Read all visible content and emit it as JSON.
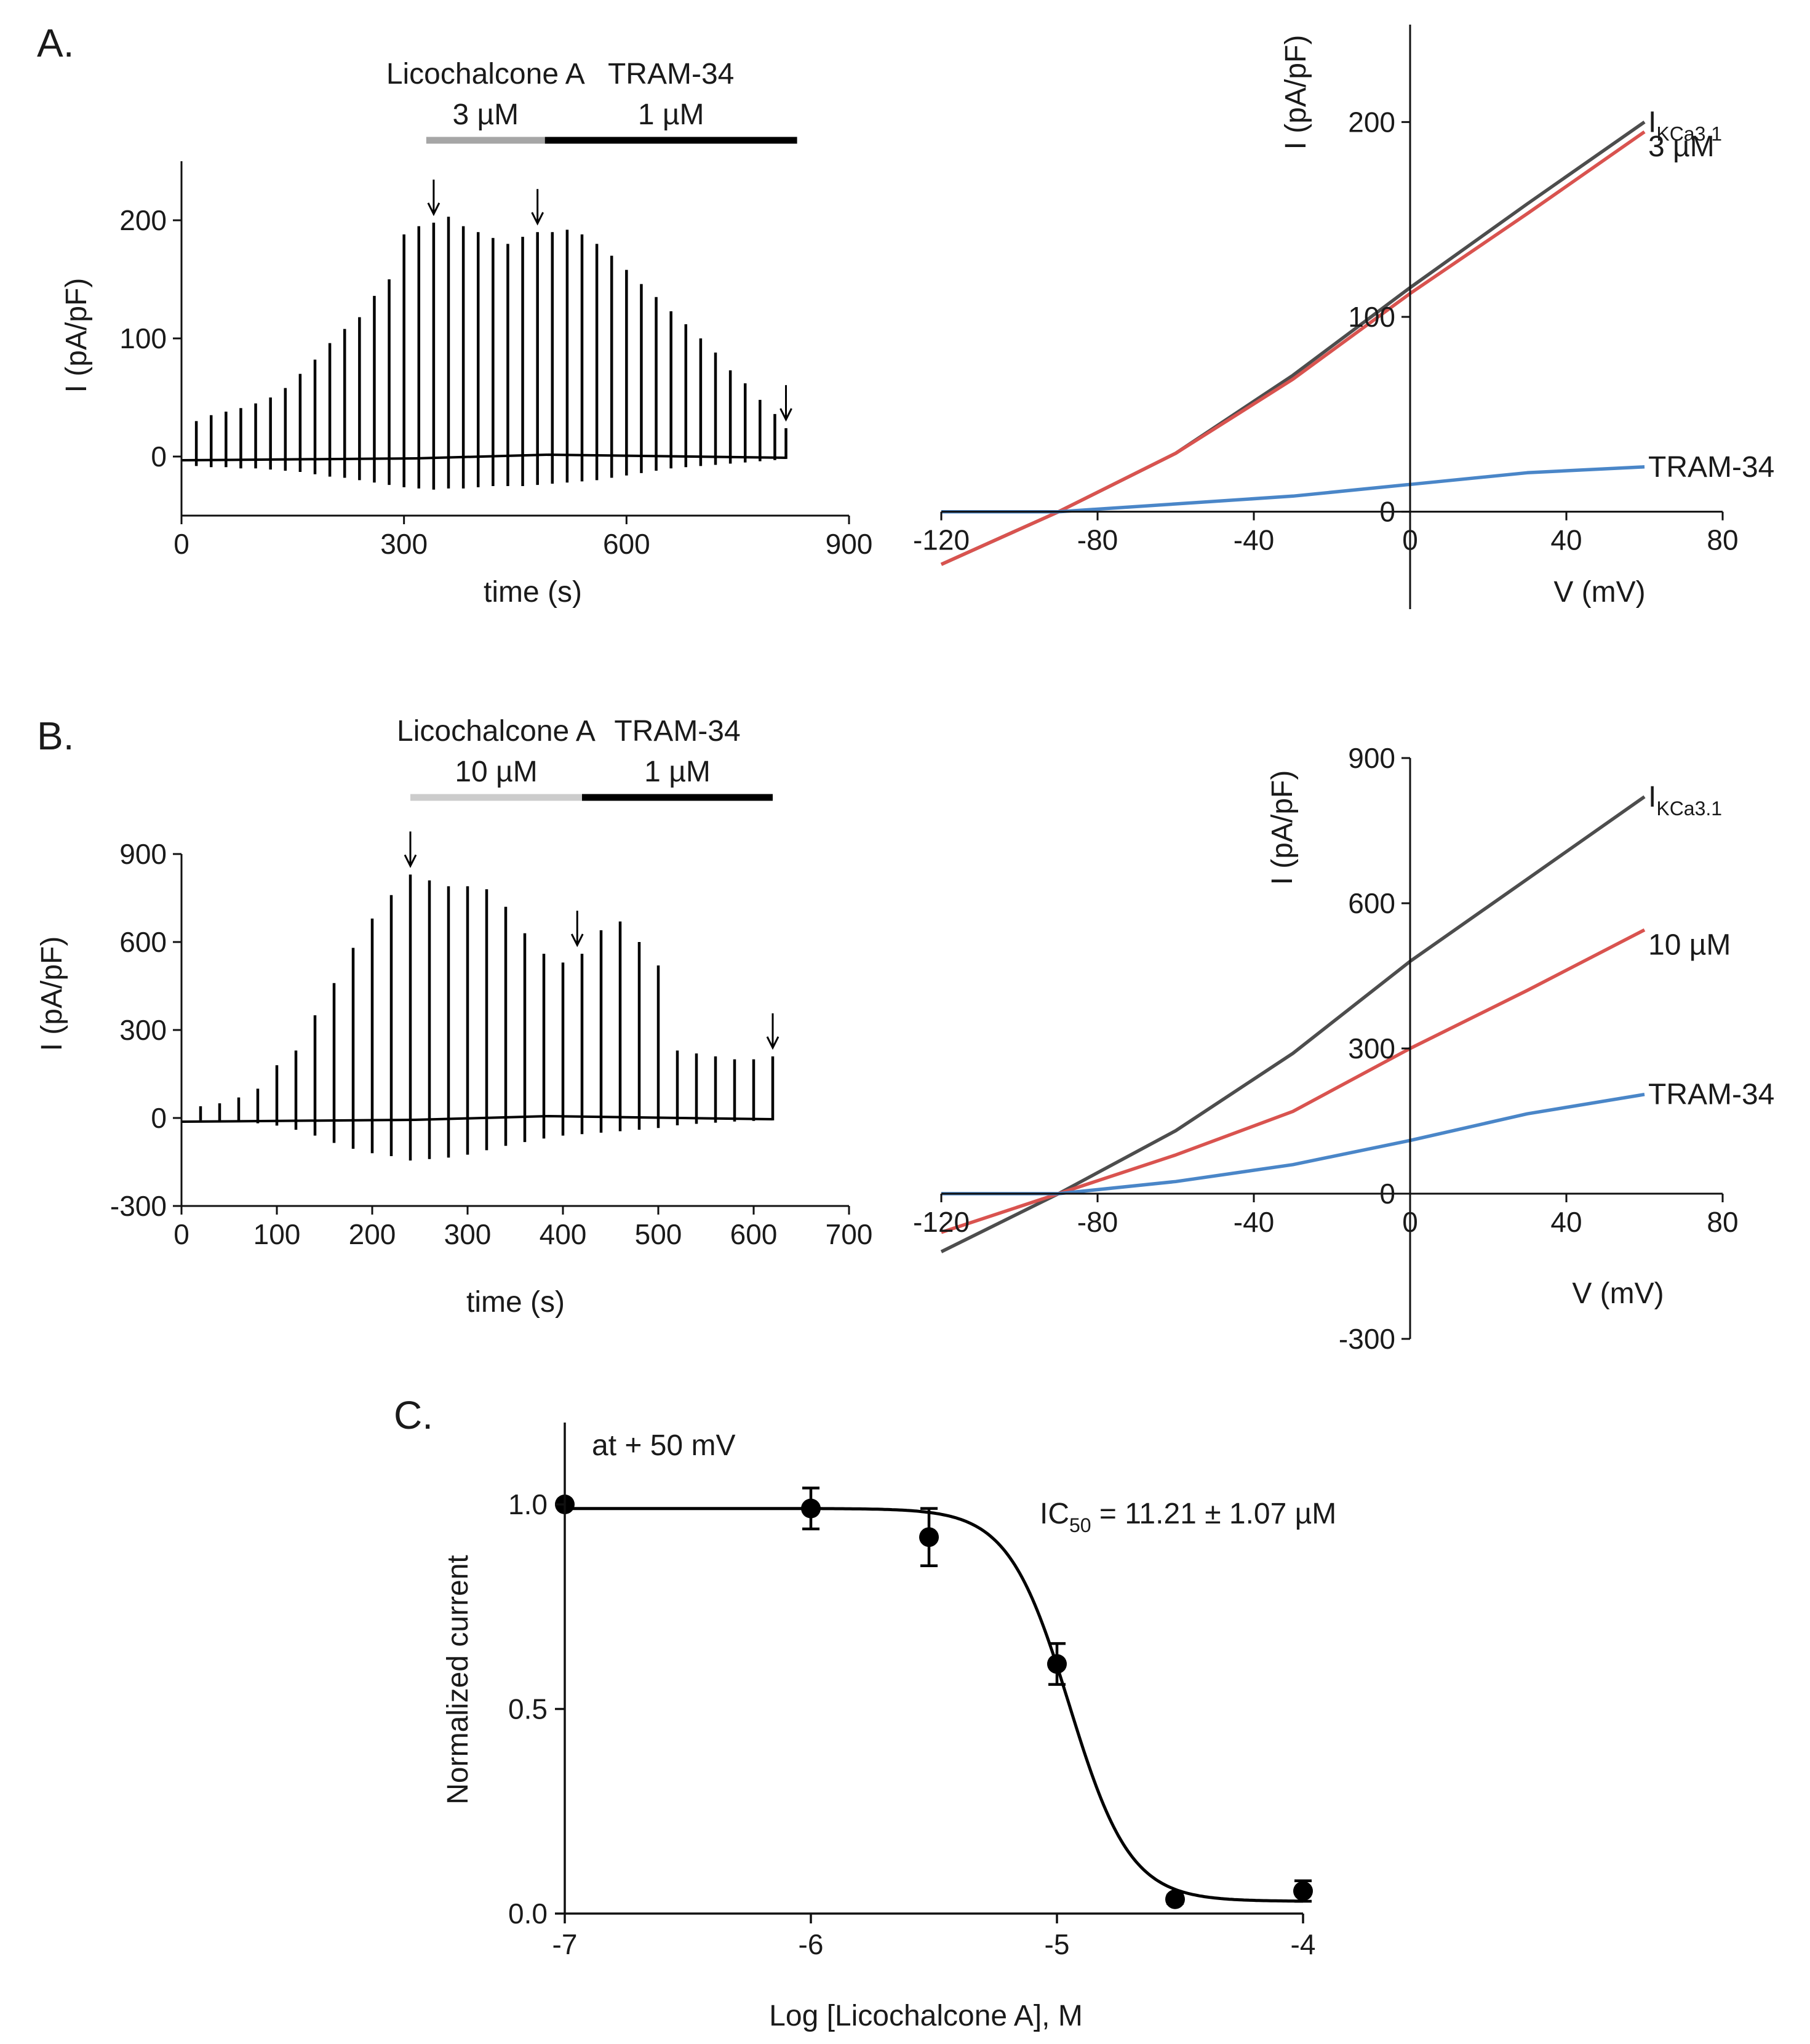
{
  "chart_data": [
    {
      "panel": "A.",
      "type": "line",
      "chart": "time course",
      "xlabel": "time (s)",
      "ylabel": "I (pA/pF)",
      "xlim": [
        0,
        900
      ],
      "ylim": [
        -50,
        250
      ],
      "xticks": [
        "0",
        "300",
        "600",
        "900"
      ],
      "yticks": [
        "0",
        "100",
        "200"
      ],
      "bars": [
        {
          "label": "Licochalcone A",
          "conc": "3 µM",
          "start": 330,
          "end": 490,
          "color": "#a6a6a6"
        },
        {
          "label": "TRAM-34",
          "conc": "1 µM",
          "start": 490,
          "end": 830,
          "color": "#000000"
        }
      ],
      "series": [
        {
          "name": "outward peak (pA/pF)",
          "x": [
            20,
            40,
            60,
            80,
            100,
            120,
            140,
            160,
            180,
            200,
            220,
            240,
            260,
            280,
            300,
            320,
            340,
            360,
            380,
            400,
            420,
            440,
            460,
            480,
            500,
            520,
            540,
            560,
            580,
            600,
            620,
            640,
            660,
            680,
            700,
            720,
            740,
            760,
            780,
            800,
            815
          ],
          "values": [
            30,
            35,
            38,
            41,
            45,
            50,
            58,
            70,
            82,
            96,
            108,
            118,
            136,
            150,
            188,
            195,
            198,
            203,
            195,
            190,
            185,
            180,
            186,
            190,
            190,
            192,
            188,
            180,
            170,
            158,
            146,
            135,
            123,
            112,
            100,
            88,
            73,
            62,
            48,
            36,
            24
          ]
        },
        {
          "name": "inward peak (pA/pF)",
          "x": [
            20,
            40,
            60,
            80,
            100,
            120,
            140,
            160,
            180,
            200,
            220,
            240,
            260,
            280,
            300,
            320,
            340,
            360,
            380,
            400,
            420,
            440,
            460,
            480,
            500,
            520,
            540,
            560,
            580,
            600,
            620,
            640,
            660,
            680,
            700,
            720,
            740,
            760,
            780,
            800,
            815
          ],
          "values": [
            -8,
            -9,
            -9,
            -10,
            -10,
            -11,
            -12,
            -13,
            -15,
            -17,
            -18,
            -20,
            -22,
            -24,
            -26,
            -27,
            -28,
            -27,
            -27,
            -26,
            -25,
            -25,
            -25,
            -24,
            -23,
            -22,
            -21,
            -20,
            -18,
            -16,
            -14,
            -12,
            -10,
            -9,
            -8,
            -7,
            -6,
            -5,
            -4,
            -3,
            -2
          ]
        }
      ],
      "arrows_x": [
        340,
        480,
        815
      ]
    },
    {
      "panel": "A-IV",
      "type": "line",
      "chart": "current-voltage",
      "xlabel": "V (mV)",
      "ylabel": "I (pA/pF)",
      "xlim": [
        -120,
        80
      ],
      "ylim": [
        -50,
        250
      ],
      "xticks": [
        "-120",
        "-80",
        "-40",
        "0",
        "40",
        "80"
      ],
      "yticks": [
        "0",
        "100",
        "200"
      ],
      "series": [
        {
          "name": "IKCa3.1",
          "label_main": "I",
          "label_sub": "KCa3.1",
          "color": "#4d4d4d",
          "x": [
            -120,
            -90,
            -60,
            -30,
            0,
            30,
            60
          ],
          "values": [
            -27,
            0,
            30,
            70,
            115,
            158,
            200
          ]
        },
        {
          "name": "3 µM",
          "label_main": "3 µM",
          "label_sub": "",
          "color": "#d9534f",
          "x": [
            -120,
            -90,
            -60,
            -30,
            0,
            30,
            60
          ],
          "values": [
            -27,
            0,
            30,
            68,
            112,
            153,
            195
          ]
        },
        {
          "name": "TRAM-34",
          "label_main": "TRAM-34",
          "label_sub": "",
          "color": "#4a86c8",
          "x": [
            -120,
            -90,
            -60,
            -30,
            0,
            30,
            60
          ],
          "values": [
            0,
            0,
            4,
            8,
            14,
            20,
            23
          ]
        }
      ]
    },
    {
      "panel": "B.",
      "type": "line",
      "chart": "time course",
      "xlabel": "time (s)",
      "ylabel": "I (pA/pF)",
      "xlim": [
        0,
        700
      ],
      "ylim": [
        -300,
        900
      ],
      "xticks": [
        "0",
        "100",
        "200",
        "300",
        "400",
        "500",
        "600",
        "700"
      ],
      "yticks": [
        "-300",
        "0",
        "300",
        "600",
        "900"
      ],
      "bars": [
        {
          "label": "Licochalcone A",
          "conc": "10 µM",
          "start": 240,
          "end": 420,
          "color": "#cccccc"
        },
        {
          "label": "TRAM-34",
          "conc": "1 µM",
          "start": 420,
          "end": 620,
          "color": "#000000"
        }
      ],
      "series": [
        {
          "name": "outward peak (pA/pF)",
          "x": [
            20,
            40,
            60,
            80,
            100,
            120,
            140,
            160,
            180,
            200,
            220,
            240,
            260,
            280,
            300,
            320,
            340,
            360,
            380,
            400,
            420,
            440,
            460,
            480,
            500,
            520,
            540,
            560,
            580,
            600,
            620
          ],
          "values": [
            40,
            50,
            70,
            100,
            180,
            230,
            350,
            460,
            580,
            680,
            760,
            830,
            810,
            790,
            790,
            780,
            720,
            630,
            560,
            530,
            560,
            640,
            670,
            600,
            520,
            230,
            220,
            210,
            200,
            200,
            210
          ]
        },
        {
          "name": "inward peak (pA/pF)",
          "x": [
            20,
            40,
            60,
            80,
            100,
            120,
            140,
            160,
            180,
            200,
            220,
            240,
            260,
            280,
            300,
            320,
            340,
            360,
            380,
            400,
            420,
            440,
            460,
            480,
            500,
            520,
            540,
            560,
            580,
            600,
            620
          ],
          "values": [
            -8,
            -10,
            -14,
            -18,
            -26,
            -40,
            -60,
            -85,
            -105,
            -120,
            -130,
            -145,
            -140,
            -135,
            -125,
            -110,
            -95,
            -82,
            -70,
            -60,
            -55,
            -50,
            -45,
            -40,
            -34,
            -25,
            -20,
            -16,
            -12,
            -10,
            -8
          ]
        }
      ],
      "arrows_x": [
        240,
        415,
        620
      ]
    },
    {
      "panel": "B-IV",
      "type": "line",
      "chart": "current-voltage",
      "xlabel": "V (mV)",
      "ylabel": "I (pA/pF)",
      "xlim": [
        -120,
        80
      ],
      "ylim": [
        -300,
        900
      ],
      "xticks": [
        "-120",
        "-80",
        "-40",
        "0",
        "40",
        "80"
      ],
      "yticks": [
        "-300",
        "0",
        "300",
        "600",
        "900"
      ],
      "series": [
        {
          "name": "IKCa3.1",
          "label_main": "I",
          "label_sub": "KCa3.1",
          "color": "#4d4d4d",
          "x": [
            -120,
            -90,
            -60,
            -30,
            0,
            30,
            60
          ],
          "values": [
            -120,
            0,
            130,
            290,
            480,
            650,
            820
          ]
        },
        {
          "name": "10 µM",
          "label_main": "10 µM",
          "label_sub": "",
          "color": "#d9534f",
          "x": [
            -120,
            -90,
            -60,
            -30,
            0,
            30,
            60
          ],
          "values": [
            -80,
            0,
            80,
            170,
            300,
            420,
            545
          ]
        },
        {
          "name": "TRAM-34",
          "label_main": "TRAM-34",
          "label_sub": "",
          "color": "#4a86c8",
          "x": [
            -120,
            -90,
            -60,
            -30,
            0,
            30,
            60
          ],
          "values": [
            0,
            0,
            25,
            60,
            110,
            165,
            205
          ]
        }
      ]
    },
    {
      "panel": "C.",
      "type": "scatter",
      "chart": "concentration-response",
      "xlabel": "Log [Licochalcone A], M",
      "ylabel": "Normalized current",
      "xlim": [
        -7,
        -4
      ],
      "ylim": [
        0,
        1.2
      ],
      "xticks": [
        "-7",
        "-6",
        "-5",
        "-4"
      ],
      "yticks": [
        "0.0",
        "0.5",
        "1.0"
      ],
      "points": {
        "x": [
          -7,
          -6,
          -5.52,
          -5,
          -4.52,
          -4
        ],
        "values": [
          1.0,
          0.99,
          0.92,
          0.61,
          0.035,
          0.055
        ],
        "errors": [
          0.0,
          0.05,
          0.07,
          0.05,
          0.01,
          0.025
        ]
      },
      "fit": {
        "type": "hill",
        "top": 0.99,
        "bottom": 0.03,
        "logIC50": -4.95,
        "hill_slope": 3.5
      },
      "annotation": "at + 50 mV",
      "ic50_label": {
        "main": "IC",
        "sub": "50",
        "rest": " = 11.21 ± 1.07 µM"
      }
    }
  ]
}
